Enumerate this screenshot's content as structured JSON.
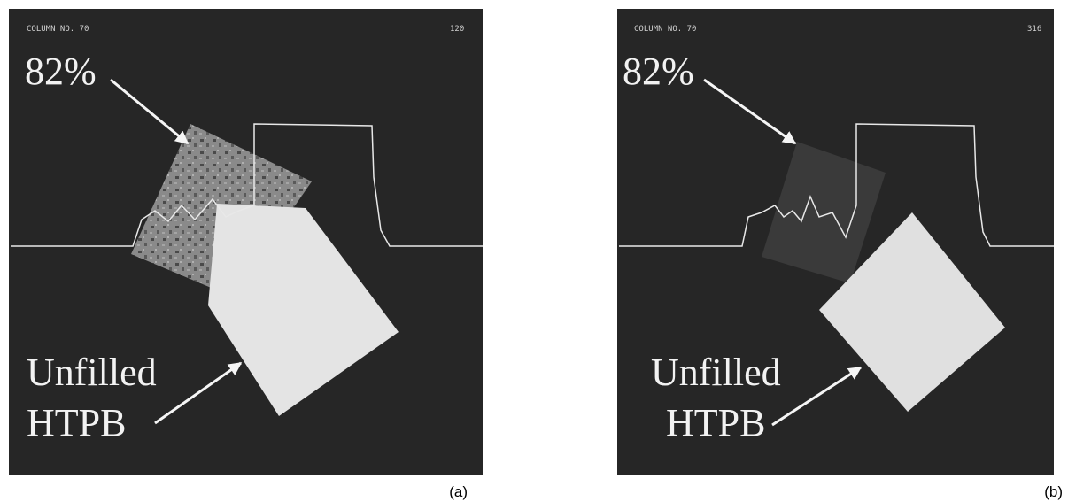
{
  "panels": [
    {
      "header_left": "COLUMN NO. 70",
      "header_right": "120",
      "fill_label": "82%",
      "unfilled_label": [
        "Unfilled",
        "HTPB"
      ],
      "caption": "(a)"
    },
    {
      "header_left": "COLUMN NO. 70",
      "header_right": "316",
      "fill_label": "82%",
      "unfilled_label": [
        "Unfilled",
        "HTPB"
      ],
      "caption": "(b)"
    }
  ]
}
